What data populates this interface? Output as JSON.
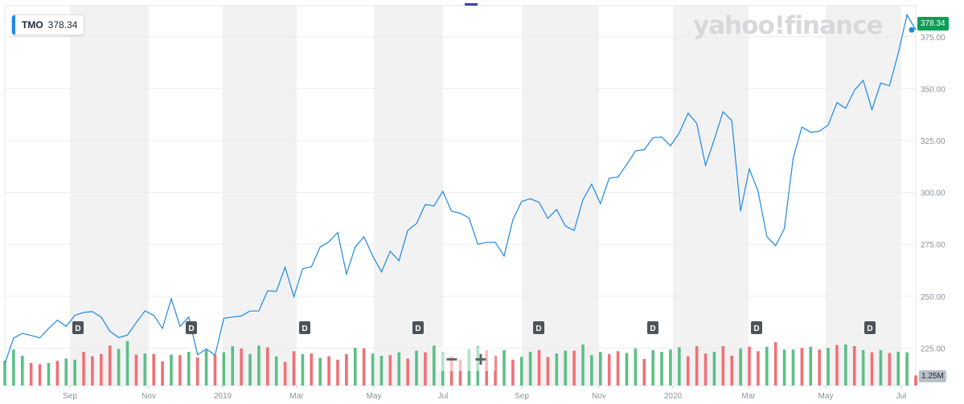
{
  "ticker": {
    "symbol": "TMO",
    "price": "378.34"
  },
  "logo_text": "yahoo!finance",
  "price_tag": "378.34",
  "volume_tag": "1.25M",
  "zoom": {
    "minus": "−",
    "plus": "+"
  },
  "colors": {
    "line": "#1e88e5",
    "up": "#5cbf87",
    "down": "#f07075",
    "band": "#f2f2f3",
    "price_tag": "#0b9f57"
  },
  "chart_data": {
    "type": "line",
    "title": "",
    "xlabel": "",
    "ylabel": "",
    "x_ticks": [
      "Sep",
      "Nov",
      "2019",
      "Mar",
      "May",
      "Jul",
      "Sep",
      "Nov",
      "2020",
      "Mar",
      "May",
      "Jul"
    ],
    "y_ticks": [
      "375.00",
      "350.00",
      "325.00",
      "300.00",
      "275.00",
      "250.00",
      "225.00"
    ],
    "ylim": [
      207,
      390
    ],
    "grid": true,
    "dividend_marker_label": "D",
    "dividend_markers": 8,
    "series": [
      {
        "values": [
          217.4,
          229.9,
          232.1,
          231.1,
          230.0,
          234.5,
          238.5,
          235.5,
          240.8,
          242.2,
          242.6,
          240.0,
          233.1,
          230.1,
          231.3,
          237.3,
          243.0,
          240.8,
          234.5,
          248.8,
          235.5,
          240.0,
          221.8,
          224.6,
          221.6,
          239.4,
          240.0,
          240.5,
          242.9,
          242.9,
          252.6,
          252.4,
          264.0,
          249.8,
          263.3,
          264.2,
          273.7,
          276.2,
          280.7,
          260.7,
          273.7,
          278.7,
          269.4,
          261.7,
          271.7,
          267.1,
          281.7,
          285.0,
          294.2,
          293.5,
          300.5,
          291.0,
          290.0,
          287.7,
          275.0,
          276.0,
          276.0,
          269.4,
          286.8,
          295.7,
          297.0,
          295.2,
          287.5,
          291.8,
          283.8,
          281.7,
          296.5,
          304.0,
          294.6,
          306.9,
          307.4,
          313.5,
          320.0,
          320.6,
          326.4,
          326.7,
          322.5,
          328.7,
          338.2,
          333.3,
          313.0,
          325.5,
          338.9,
          334.6,
          291.0,
          311.4,
          300.5,
          278.7,
          274.4,
          282.6,
          316.5,
          331.5,
          329.0,
          329.5,
          332.5,
          343.3,
          340.5,
          349.2,
          354.0,
          339.9,
          352.7,
          351.4,
          367.0,
          385.6,
          378.3
        ]
      }
    ],
    "volume": {
      "label": "1.25M",
      "values": [
        0.44,
        0.64,
        0.53,
        0.4,
        0.38,
        0.4,
        0.44,
        0.48,
        0.46,
        0.6,
        0.52,
        0.56,
        0.71,
        0.65,
        0.79,
        0.55,
        0.57,
        0.56,
        0.43,
        0.55,
        0.54,
        0.6,
        0.5,
        0.63,
        0.54,
        0.59,
        0.7,
        0.66,
        0.56,
        0.71,
        0.68,
        0.52,
        0.42,
        0.61,
        0.56,
        0.57,
        0.49,
        0.52,
        0.46,
        0.56,
        0.67,
        0.66,
        0.57,
        0.53,
        0.54,
        0.59,
        0.48,
        0.62,
        0.59,
        0.71,
        0.6,
        0.52,
        0.46,
        0.65,
        0.7,
        0.63,
        0.53,
        0.63,
        0.46,
        0.51,
        0.6,
        0.63,
        0.51,
        0.57,
        0.62,
        0.62,
        0.73,
        0.54,
        0.6,
        0.56,
        0.61,
        0.58,
        0.66,
        0.47,
        0.63,
        0.6,
        0.64,
        0.68,
        0.52,
        0.7,
        0.57,
        0.6,
        0.7,
        0.53,
        0.66,
        0.69,
        0.61,
        0.69,
        0.77,
        0.64,
        0.64,
        0.67,
        0.69,
        0.64,
        0.67,
        0.72,
        0.73,
        0.7,
        0.63,
        0.59,
        0.63,
        0.58,
        0.6,
        0.59,
        0.18
      ],
      "up": [
        1,
        1,
        1,
        0,
        0,
        1,
        0,
        1,
        1,
        0,
        0,
        0,
        0,
        1,
        1,
        0,
        1,
        0,
        0,
        1,
        0,
        1,
        0,
        1,
        0,
        1,
        1,
        0,
        1,
        1,
        0,
        1,
        0,
        0,
        1,
        0,
        1,
        0,
        0,
        0,
        1,
        0,
        1,
        1,
        0,
        1,
        0,
        1,
        0,
        1,
        1,
        0,
        0,
        1,
        1,
        0,
        0,
        1,
        0,
        1,
        1,
        0,
        0,
        1,
        1,
        0,
        1,
        1,
        1,
        0,
        0,
        1,
        1,
        0,
        1,
        1,
        1,
        1,
        0,
        0,
        0,
        1,
        0,
        0,
        1,
        0,
        0,
        1,
        0,
        1,
        1,
        0,
        1,
        0,
        1,
        0,
        1,
        0,
        1,
        0,
        1,
        0,
        1,
        1,
        0
      ]
    }
  }
}
